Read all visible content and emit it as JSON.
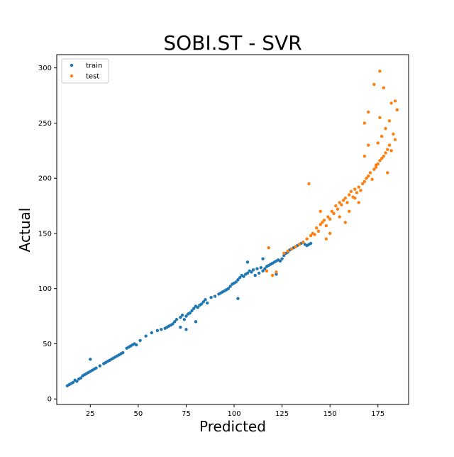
{
  "chart_data": {
    "type": "scatter",
    "title": "SOBI.ST - SVR",
    "xlabel": "Predicted",
    "ylabel": "Actual",
    "xlim": [
      7.5,
      191
    ],
    "ylim": [
      -5,
      312
    ],
    "xticks": [
      25,
      50,
      75,
      100,
      125,
      150,
      175
    ],
    "yticks": [
      0,
      50,
      100,
      150,
      200,
      250,
      300
    ],
    "grid": false,
    "legend_position": "top-left",
    "series": [
      {
        "name": "train",
        "color": "#1f77b4",
        "description": "dense cluster along the diagonal from about (13, 12) to (140, 140)",
        "points": [
          [
            13,
            12
          ],
          [
            14,
            13
          ],
          [
            15,
            14
          ],
          [
            16,
            15
          ],
          [
            17,
            17
          ],
          [
            18,
            16
          ],
          [
            19,
            18
          ],
          [
            20,
            19
          ],
          [
            21,
            21
          ],
          [
            22,
            22
          ],
          [
            23,
            23
          ],
          [
            24,
            24
          ],
          [
            25,
            25
          ],
          [
            26,
            26
          ],
          [
            27,
            27
          ],
          [
            28,
            28
          ],
          [
            25,
            36
          ],
          [
            30,
            30
          ],
          [
            32,
            32
          ],
          [
            33,
            33
          ],
          [
            34,
            34
          ],
          [
            35,
            35
          ],
          [
            36,
            36
          ],
          [
            37,
            37
          ],
          [
            38,
            38
          ],
          [
            39,
            39
          ],
          [
            40,
            40
          ],
          [
            41,
            41
          ],
          [
            42,
            42
          ],
          [
            44,
            46
          ],
          [
            45,
            47
          ],
          [
            46,
            48
          ],
          [
            47,
            49
          ],
          [
            48,
            50
          ],
          [
            49,
            49
          ],
          [
            51,
            53
          ],
          [
            54,
            57
          ],
          [
            57,
            60
          ],
          [
            60,
            62
          ],
          [
            62,
            63
          ],
          [
            64,
            64
          ],
          [
            65,
            65
          ],
          [
            66,
            66
          ],
          [
            67,
            67
          ],
          [
            68,
            68
          ],
          [
            69,
            70
          ],
          [
            70,
            72
          ],
          [
            72,
            74
          ],
          [
            73,
            76
          ],
          [
            74,
            72
          ],
          [
            75,
            75
          ],
          [
            76,
            77
          ],
          [
            77,
            78
          ],
          [
            78,
            80
          ],
          [
            79,
            82
          ],
          [
            80,
            84
          ],
          [
            81,
            83
          ],
          [
            82,
            85
          ],
          [
            83,
            86
          ],
          [
            84,
            88
          ],
          [
            85,
            90
          ],
          [
            86,
            87
          ],
          [
            88,
            92
          ],
          [
            90,
            93
          ],
          [
            92,
            95
          ],
          [
            93,
            96
          ],
          [
            94,
            97
          ],
          [
            95,
            98
          ],
          [
            96,
            99
          ],
          [
            97,
            100
          ],
          [
            98,
            102
          ],
          [
            99,
            104
          ],
          [
            100,
            105
          ],
          [
            101,
            106
          ],
          [
            102,
            108
          ],
          [
            103,
            110
          ],
          [
            104,
            112
          ],
          [
            105,
            111
          ],
          [
            106,
            113
          ],
          [
            107,
            114
          ],
          [
            108,
            116
          ],
          [
            109,
            115
          ],
          [
            110,
            117
          ],
          [
            111,
            112
          ],
          [
            112,
            118
          ],
          [
            113,
            114
          ],
          [
            114,
            119
          ],
          [
            115,
            116
          ],
          [
            116,
            118
          ],
          [
            117,
            120
          ],
          [
            118,
            121
          ],
          [
            119,
            122
          ],
          [
            120,
            123
          ],
          [
            121,
            124
          ],
          [
            122,
            125
          ],
          [
            123,
            126
          ],
          [
            124,
            125
          ],
          [
            125,
            127
          ],
          [
            126,
            130
          ],
          [
            127,
            132
          ],
          [
            128,
            133
          ],
          [
            129,
            135
          ],
          [
            130,
            136
          ],
          [
            131,
            137
          ],
          [
            132,
            138
          ],
          [
            133,
            139
          ],
          [
            134,
            140
          ],
          [
            135,
            141
          ],
          [
            136,
            142
          ],
          [
            137,
            140
          ],
          [
            138,
            139
          ],
          [
            139,
            140
          ],
          [
            140,
            141
          ],
          [
            102,
            91
          ],
          [
            107,
            124
          ],
          [
            115,
            127
          ],
          [
            122,
            113
          ],
          [
            80,
            70
          ],
          [
            75,
            63
          ],
          [
            72,
            65
          ]
        ]
      },
      {
        "name": "test",
        "color": "#ff7f0e",
        "description": "continuation of the cluster from about (110, 110) to (185, 297), with increasing spread",
        "points": [
          [
            117,
            116
          ],
          [
            118,
            137
          ],
          [
            120,
            112
          ],
          [
            122,
            115
          ],
          [
            126,
            132
          ],
          [
            128,
            134
          ],
          [
            130,
            136
          ],
          [
            132,
            138
          ],
          [
            134,
            140
          ],
          [
            136,
            142
          ],
          [
            138,
            145
          ],
          [
            140,
            148
          ],
          [
            141,
            150
          ],
          [
            142,
            149
          ],
          [
            143,
            155
          ],
          [
            144,
            152
          ],
          [
            145,
            158
          ],
          [
            146,
            160
          ],
          [
            147,
            162
          ],
          [
            148,
            157
          ],
          [
            149,
            165
          ],
          [
            150,
            163
          ],
          [
            151,
            170
          ],
          [
            152,
            168
          ],
          [
            153,
            175
          ],
          [
            154,
            172
          ],
          [
            155,
            178
          ],
          [
            156,
            176
          ],
          [
            157,
            180
          ],
          [
            158,
            182
          ],
          [
            159,
            178
          ],
          [
            160,
            185
          ],
          [
            161,
            188
          ],
          [
            162,
            183
          ],
          [
            163,
            190
          ],
          [
            164,
            187
          ],
          [
            165,
            192
          ],
          [
            166,
            189
          ],
          [
            167,
            195
          ],
          [
            168,
            197
          ],
          [
            169,
            200
          ],
          [
            170,
            202
          ],
          [
            171,
            205
          ],
          [
            172,
            199
          ],
          [
            173,
            208
          ],
          [
            174,
            210
          ],
          [
            175,
            213
          ],
          [
            176,
            216
          ],
          [
            177,
            218
          ],
          [
            178,
            220
          ],
          [
            179,
            223
          ],
          [
            180,
            226
          ],
          [
            181,
            230
          ],
          [
            182,
            225
          ],
          [
            183,
            240
          ],
          [
            184,
            235
          ],
          [
            185,
            262
          ],
          [
            184,
            270
          ],
          [
            182,
            268
          ],
          [
            178,
            282
          ],
          [
            176,
            297
          ],
          [
            173,
            285
          ],
          [
            170,
            260
          ],
          [
            168,
            250
          ],
          [
            176,
            255
          ],
          [
            179,
            245
          ],
          [
            181,
            252
          ],
          [
            177,
            238
          ],
          [
            175,
            232
          ],
          [
            160,
            170
          ],
          [
            155,
            165
          ],
          [
            165,
            178
          ],
          [
            150,
            150
          ],
          [
            148,
            145
          ],
          [
            139,
            195
          ],
          [
            145,
            170
          ],
          [
            170,
            230
          ],
          [
            168,
            220
          ],
          [
            174,
            212
          ],
          [
            180,
            205
          ],
          [
            158,
            160
          ],
          [
            163,
            182
          ]
        ]
      }
    ]
  }
}
